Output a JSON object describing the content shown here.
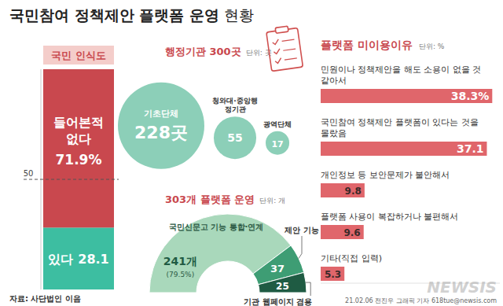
{
  "title": "국민참여 정책제안 플랫폼 운영",
  "title_suffix": "현황",
  "source": "자료: 사단법인 이음",
  "credit": "21.02.06 전진우 그래픽 기자 618tue@newsis.com",
  "watermark": "NEWSIS",
  "chart_data": [
    {
      "type": "bar",
      "stacked": true,
      "title": "국민 인식도",
      "categories": [
        null
      ],
      "series": [
        {
          "name": "있다",
          "color": "#3dbea1",
          "values": [
            28.1
          ]
        },
        {
          "name": "들어본적 없다",
          "color": "#c9484e",
          "values": [
            71.9
          ],
          "value_labels": [
            "71.9%"
          ]
        }
      ],
      "ylim": [
        0,
        100
      ],
      "yticks": [
        50
      ],
      "grid": true,
      "tick_labels": "y",
      "data_labels": true
    },
    {
      "type": "bubble",
      "title": "행정기관 300곳",
      "subtitle": "단위: 곳",
      "categories": [
        "기초단체",
        "청와대·중앙행정기관",
        "광역단체"
      ],
      "values": [
        228,
        55,
        17
      ],
      "value_labels": [
        "228곳",
        "55",
        "17"
      ],
      "color": "#8ccfb8",
      "data_labels": true
    },
    {
      "type": "pie",
      "title": "303개 플랫폼 운영",
      "subtitle": "단위: 개",
      "categories": [
        "국민신문고 기능 통합·연계",
        "제안 기능",
        "기관 웹페이지 겸용"
      ],
      "values": [
        241,
        37,
        25
      ],
      "value_labels": [
        "241개",
        "37",
        "25"
      ],
      "colors": [
        "#a9d8bb",
        "#3e9d74",
        "#1f5b43"
      ],
      "annotations": [
        "(79.5%)"
      ],
      "data_labels": true
    },
    {
      "type": "bar",
      "orientation": "horizontal",
      "title": "플랫폼 미이용이유",
      "subtitle": "단위: %",
      "categories": [
        "민원이나 정책제안을 해도 소용이 없을 것 같아서",
        "국민참여 정책제안 플랫폼이 있다는 것을 몰랐음",
        "개인정보 등 보안문제가 불안해서",
        "플랫폼 사용이 복잡하거나 불편해서",
        "기타(직접 입력)"
      ],
      "values": [
        38.3,
        37.1,
        9.8,
        9.6,
        5.3
      ],
      "value_labels": [
        "38.3%",
        "37.1",
        "9.8",
        "9.6",
        "5.3"
      ],
      "color": "#e0666b",
      "xlim": [
        0,
        40
      ],
      "tick_labels": false,
      "data_labels": true
    }
  ]
}
